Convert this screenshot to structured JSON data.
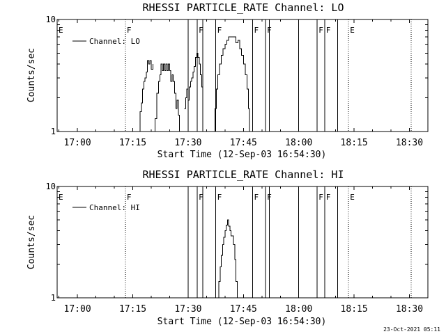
{
  "chart_data": [
    {
      "type": "line",
      "title": "RHESSI PARTICLE_RATE Channel: LO",
      "xlabel": "Start Time (12-Sep-03 16:54:30)",
      "ylabel": "Counts/sec",
      "yscale": "log",
      "ylim": [
        1,
        10
      ],
      "yticks": [
        "1",
        "10"
      ],
      "xlim": [
        "16:54:30",
        "18:35:00"
      ],
      "xticks": [
        "17:00",
        "17:15",
        "17:30",
        "17:45",
        "18:00",
        "18:15",
        "18:30"
      ],
      "legend": {
        "placement": "top-left",
        "entries": [
          "Channel: LO"
        ]
      },
      "flags": [
        {
          "time": "16:54:30",
          "label": "E",
          "style": "none"
        },
        {
          "time": "17:13:00",
          "label": "F",
          "style": "dotted"
        },
        {
          "time": "17:30:00",
          "label": "",
          "style": "solid"
        },
        {
          "time": "17:32:30",
          "label": "F",
          "style": "solid"
        },
        {
          "time": "17:34:00",
          "label": "",
          "style": "solid"
        },
        {
          "time": "17:37:30",
          "label": "F",
          "style": "solid"
        },
        {
          "time": "17:47:30",
          "label": "F",
          "style": "solid"
        },
        {
          "time": "17:51:00",
          "label": "F",
          "style": "solid"
        },
        {
          "time": "17:52:00",
          "label": "",
          "style": "solid"
        },
        {
          "time": "18:00:00",
          "label": "",
          "style": "solid"
        },
        {
          "time": "18:05:00",
          "label": "F",
          "style": "solid"
        },
        {
          "time": "18:07:00",
          "label": "F",
          "style": "solid"
        },
        {
          "time": "18:10:30",
          "label": "",
          "style": "solid"
        },
        {
          "time": "18:13:30",
          "label": "E",
          "style": "dotted"
        },
        {
          "time": "18:30:30",
          "label": "",
          "style": "dotted"
        }
      ],
      "series": [
        {
          "name": "Channel: LO",
          "segments": [
            [
              [
                "17:20:40",
                1.0
              ],
              [
                "17:21:00",
                1.3
              ],
              [
                "17:21:30",
                2.2
              ],
              [
                "17:22:00",
                2.8
              ],
              [
                "17:22:20",
                3.2
              ],
              [
                "17:22:40",
                4.0
              ],
              [
                "17:23:00",
                3.5
              ],
              [
                "17:23:20",
                4.0
              ],
              [
                "17:23:40",
                3.5
              ],
              [
                "17:24:00",
                4.0
              ],
              [
                "17:24:20",
                3.5
              ],
              [
                "17:24:40",
                4.0
              ],
              [
                "17:25:00",
                3.5
              ],
              [
                "17:25:20",
                2.8
              ],
              [
                "17:25:40",
                3.2
              ],
              [
                "17:26:00",
                2.8
              ],
              [
                "17:26:20",
                2.2
              ],
              [
                "17:26:40",
                1.6
              ],
              [
                "17:27:00",
                1.9
              ],
              [
                "17:27:20",
                1.4
              ],
              [
                "17:27:40",
                1.0
              ]
            ],
            [
              [
                "17:16:40",
                1.0
              ],
              [
                "17:17:00",
                1.5
              ],
              [
                "17:17:20",
                1.8
              ],
              [
                "17:17:40",
                2.4
              ],
              [
                "17:18:00",
                2.8
              ],
              [
                "17:18:20",
                3.0
              ],
              [
                "17:18:40",
                3.4
              ],
              [
                "17:19:00",
                4.3
              ],
              [
                "17:19:20",
                4.0
              ],
              [
                "17:19:40",
                4.3
              ],
              [
                "17:20:00",
                3.6
              ],
              [
                "17:20:30",
                4.0
              ]
            ],
            [
              [
                "17:30:00",
                1.9
              ],
              [
                "17:30:20",
                2.5
              ],
              [
                "17:30:40",
                2.8
              ],
              [
                "17:31:00",
                3.0
              ],
              [
                "17:31:20",
                3.4
              ],
              [
                "17:31:40",
                3.8
              ],
              [
                "17:32:00",
                4.6
              ],
              [
                "17:32:20",
                5.0
              ],
              [
                "17:32:40",
                4.6
              ],
              [
                "17:33:00",
                4.0
              ],
              [
                "17:33:20",
                3.2
              ],
              [
                "17:33:40",
                2.5
              ],
              [
                "17:34:00",
                1.8
              ]
            ],
            [
              [
                "17:29:00",
                1.6
              ],
              [
                "17:29:20",
                2.0
              ],
              [
                "17:29:40",
                2.4
              ],
              [
                "17:30:00",
                1.9
              ]
            ],
            [
              [
                "17:37:00",
                1.0
              ],
              [
                "17:37:20",
                1.6
              ],
              [
                "17:37:40",
                2.4
              ],
              [
                "17:38:00",
                3.2
              ],
              [
                "17:38:30",
                4.0
              ],
              [
                "17:39:00",
                4.8
              ],
              [
                "17:39:30",
                5.5
              ],
              [
                "17:40:00",
                6.0
              ],
              [
                "17:40:30",
                6.5
              ],
              [
                "17:41:00",
                7.0
              ],
              [
                "17:42:00",
                7.0
              ],
              [
                "17:42:30",
                7.0
              ],
              [
                "17:43:00",
                6.2
              ],
              [
                "17:43:30",
                6.5
              ],
              [
                "17:44:00",
                5.5
              ],
              [
                "17:44:30",
                4.8
              ],
              [
                "17:45:00",
                4.0
              ],
              [
                "17:45:30",
                3.2
              ],
              [
                "17:46:00",
                2.4
              ],
              [
                "17:46:20",
                1.6
              ],
              [
                "17:46:40",
                1.0
              ]
            ]
          ]
        }
      ]
    },
    {
      "type": "line",
      "title": "RHESSI PARTICLE_RATE Channel: HI",
      "xlabel": "Start Time (12-Sep-03 16:54:30)",
      "ylabel": "Counts/sec",
      "yscale": "log",
      "ylim": [
        1,
        10
      ],
      "yticks": [
        "1",
        "10"
      ],
      "xlim": [
        "16:54:30",
        "18:35:00"
      ],
      "xticks": [
        "17:00",
        "17:15",
        "17:30",
        "17:45",
        "18:00",
        "18:15",
        "18:30"
      ],
      "legend": {
        "placement": "top-left",
        "entries": [
          "Channel: HI"
        ]
      },
      "flags": [
        {
          "time": "16:54:30",
          "label": "E",
          "style": "none"
        },
        {
          "time": "17:13:00",
          "label": "F",
          "style": "dotted"
        },
        {
          "time": "17:30:00",
          "label": "",
          "style": "solid"
        },
        {
          "time": "17:32:30",
          "label": "F",
          "style": "solid"
        },
        {
          "time": "17:34:00",
          "label": "",
          "style": "solid"
        },
        {
          "time": "17:37:30",
          "label": "F",
          "style": "solid"
        },
        {
          "time": "17:47:30",
          "label": "F",
          "style": "solid"
        },
        {
          "time": "17:51:00",
          "label": "F",
          "style": "solid"
        },
        {
          "time": "17:52:00",
          "label": "",
          "style": "solid"
        },
        {
          "time": "18:00:00",
          "label": "",
          "style": "solid"
        },
        {
          "time": "18:05:00",
          "label": "F",
          "style": "solid"
        },
        {
          "time": "18:07:00",
          "label": "F",
          "style": "solid"
        },
        {
          "time": "18:10:30",
          "label": "",
          "style": "solid"
        },
        {
          "time": "18:13:30",
          "label": "E",
          "style": "dotted"
        },
        {
          "time": "18:30:30",
          "label": "",
          "style": "dotted"
        }
      ],
      "series": [
        {
          "name": "Channel: HI",
          "segments": [
            [
              [
                "17:38:00",
                1.0
              ],
              [
                "17:38:20",
                1.4
              ],
              [
                "17:38:40",
                1.9
              ],
              [
                "17:39:00",
                2.4
              ],
              [
                "17:39:20",
                3.0
              ],
              [
                "17:39:40",
                3.5
              ],
              [
                "17:40:00",
                4.0
              ],
              [
                "17:40:20",
                4.5
              ],
              [
                "17:40:40",
                5.0
              ],
              [
                "17:41:00",
                4.4
              ],
              [
                "17:41:20",
                4.0
              ],
              [
                "17:41:40",
                3.6
              ],
              [
                "17:42:00",
                3.6
              ],
              [
                "17:42:20",
                3.0
              ],
              [
                "17:42:40",
                2.2
              ],
              [
                "17:43:00",
                1.4
              ],
              [
                "17:43:20",
                1.0
              ]
            ]
          ]
        }
      ]
    }
  ],
  "footer": {
    "timestamp": "23-Oct-2021 05:11"
  }
}
